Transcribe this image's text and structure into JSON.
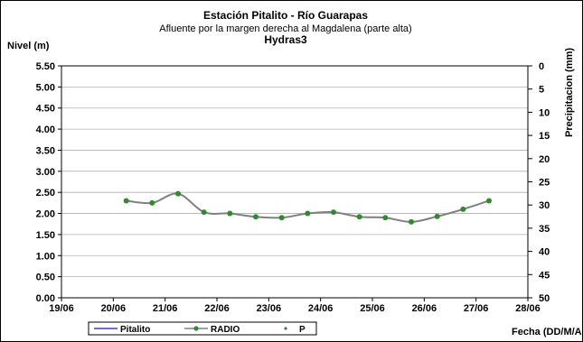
{
  "chart_data": {
    "type": "line",
    "title": "Estación Pitalito  - Río Guarapas",
    "subtitle": "Afluente por la margen derecha al Magdalena (parte alta)",
    "subtitle2": "Hydras3",
    "ylabel": "Nivel (m)",
    "y2label": "Precipitacion (mm)",
    "xlabel": "Fecha (DD/M/AA)",
    "x_ticks": [
      "19/06",
      "20/06",
      "21/06",
      "22/06",
      "23/06",
      "24/06",
      "25/06",
      "26/06",
      "27/06",
      "28/06"
    ],
    "y_ticks": [
      "0.00",
      "0.50",
      "1.00",
      "1.50",
      "2.00",
      "2.50",
      "3.00",
      "3.50",
      "4.00",
      "4.50",
      "5.00",
      "5.50"
    ],
    "y2_ticks": [
      "0",
      "5",
      "10",
      "15",
      "20",
      "25",
      "30",
      "35",
      "40",
      "45",
      "50"
    ],
    "xlim": [
      0,
      9
    ],
    "ylim": [
      0,
      5.5
    ],
    "y2lim": [
      50,
      0
    ],
    "grid": true,
    "legend_position": "bottom",
    "series": [
      {
        "name": "Pitalito",
        "color": "#3a3adb",
        "marker": "none",
        "x": [],
        "y": []
      },
      {
        "name": "RADIO",
        "color": "#808080",
        "marker_color": "#2e8b2e",
        "x": [
          1.25,
          1.75,
          2.25,
          2.75,
          3.25,
          3.75,
          4.25,
          4.75,
          5.25,
          5.75,
          6.25,
          6.75,
          7.25,
          7.75,
          8.25
        ],
        "y": [
          2.3,
          2.25,
          2.47,
          2.03,
          2.0,
          1.92,
          1.9,
          2.0,
          2.03,
          1.92,
          1.9,
          1.8,
          1.93,
          2.1,
          2.3
        ]
      },
      {
        "name": "P",
        "color": "#2e8b2e",
        "marker": "dot",
        "x": [],
        "y": []
      }
    ]
  }
}
